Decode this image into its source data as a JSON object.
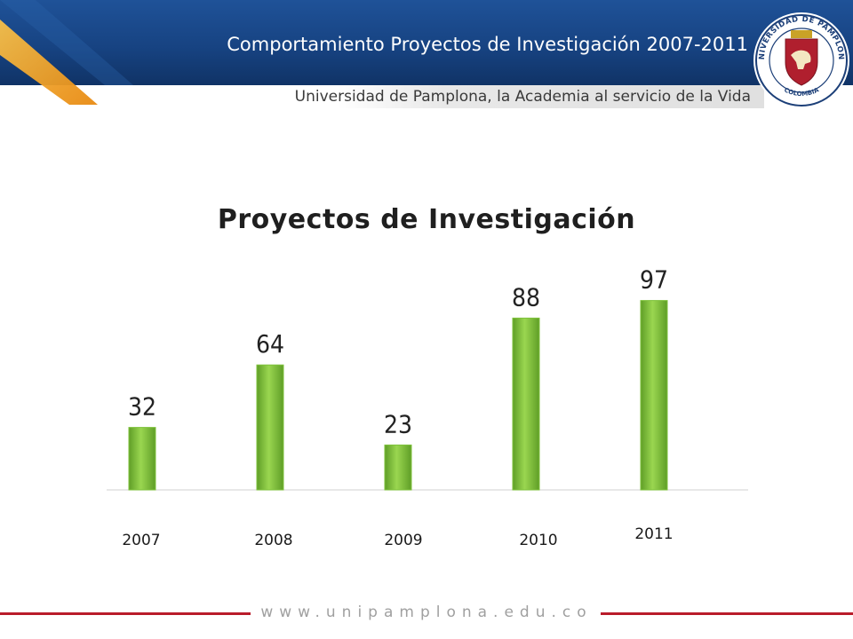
{
  "header": {
    "title": "Comportamiento Proyectos de Investigación 2007-2011",
    "subtitle": "Universidad de Pamplona, la Academia al servicio de la Vida"
  },
  "seal": {
    "text_top": "UNIVERSIDAD DE PAMPLONA",
    "text_bottom": "COLOMBIA"
  },
  "footer": {
    "url": "www.unipamplona.edu.co"
  },
  "colors": {
    "header_blue": "#174382",
    "accent_orange": "#f2a31c",
    "bar_green": "#7ec23a",
    "footer_red": "#b91c2b"
  },
  "chart_data": {
    "type": "bar",
    "title": "Proyectos de Investigación",
    "categories": [
      "2007",
      "2008",
      "2009",
      "2010",
      "2011"
    ],
    "values": [
      32,
      64,
      23,
      88,
      97
    ],
    "xlabel": "",
    "ylabel": "",
    "ylim": [
      0,
      100
    ],
    "grid": false,
    "legend": "none"
  }
}
